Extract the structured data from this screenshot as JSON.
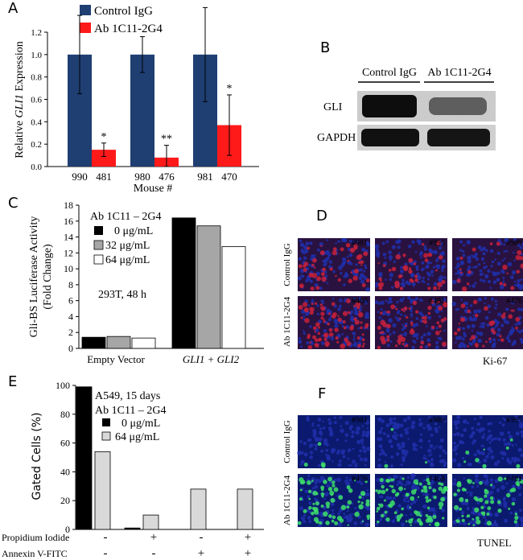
{
  "colors": {
    "control": "#1f3f73",
    "ab": "#ff1a1a",
    "black": "#000000",
    "gray": "#a6a6a6",
    "white": "#ffffff",
    "light_gray": "#d9d9d9",
    "ki67_red": "#c8213a",
    "tunel_green": "#3de06a",
    "nuclei_blue": "#1f2fa8"
  },
  "panel_labels": {
    "a": "A",
    "b": "B",
    "c": "C",
    "d": "D",
    "e": "E",
    "f": "F"
  },
  "chart_data": [
    {
      "id": "A",
      "type": "bar",
      "title": "",
      "ylabel_prefix": "Relative ",
      "ylabel_italic": "GLI1",
      "ylabel_suffix": " Expression",
      "xlabel": "Mouse #",
      "ylim": [
        0,
        1.2
      ],
      "yticks": [
        "0.0",
        "0.2",
        "0.4",
        "0.6",
        "0.8",
        "1.0",
        "1.2"
      ],
      "ytick_values": [
        0,
        0.2,
        0.4,
        0.6,
        0.8,
        1.0,
        1.2
      ],
      "legend": [
        "Control IgG",
        "Ab 1C11-2G4"
      ],
      "groups": [
        {
          "labels": [
            "990",
            "481"
          ],
          "values": [
            1.0,
            0.15
          ],
          "errors": [
            0.35,
            0.06
          ],
          "sig": "*"
        },
        {
          "labels": [
            "980",
            "476"
          ],
          "values": [
            1.0,
            0.08
          ],
          "errors": [
            0.16,
            0.11
          ],
          "sig": "**"
        },
        {
          "labels": [
            "981",
            "470"
          ],
          "values": [
            1.0,
            0.37
          ],
          "errors": [
            0.42,
            0.27
          ],
          "sig": "*"
        }
      ]
    },
    {
      "id": "C",
      "type": "bar",
      "title": "",
      "ylabel_line1": "Gli-BS Luciferase Activity",
      "ylabel_line2": "(Fold Change)",
      "ylim": [
        0,
        18
      ],
      "yticks": [
        "0",
        "2",
        "4",
        "6",
        "8",
        "10",
        "12",
        "14",
        "16",
        "18"
      ],
      "ytick_values": [
        0,
        2,
        4,
        6,
        8,
        10,
        12,
        14,
        16,
        18
      ],
      "categories": [
        "Empty Vector",
        "GLI1 + GLI2"
      ],
      "category_italic": [
        false,
        true
      ],
      "legend_title": "Ab 1C11 – 2G4",
      "annotation": "293T, 48 h",
      "series": [
        {
          "name": "0 μg/mL",
          "values": [
            1.4,
            16.4
          ]
        },
        {
          "name": "32 μg/mL",
          "values": [
            1.5,
            15.4
          ]
        },
        {
          "name": "64 μg/mL",
          "values": [
            1.3,
            12.8
          ]
        }
      ]
    },
    {
      "id": "E",
      "type": "bar",
      "title": "",
      "ylabel": "Gated Cells (%)",
      "ylim": [
        0,
        100
      ],
      "yticks": [
        "0",
        "20",
        "40",
        "60",
        "80",
        "100"
      ],
      "ytick_values": [
        0,
        20,
        40,
        60,
        80,
        100
      ],
      "annotation_line1": "A549, 15 days",
      "annotation_line2": "Ab 1C11 – 2G4",
      "series": [
        {
          "name": "0 μg/mL",
          "values": [
            99,
            1,
            0,
            0
          ]
        },
        {
          "name": "64 μg/mL",
          "values": [
            54,
            10,
            28,
            28
          ]
        }
      ],
      "row_labels": [
        "Propidium Iodide",
        "Annexin V-FITC"
      ],
      "row_marks": [
        [
          "-",
          "+",
          "-",
          "+"
        ],
        [
          "-",
          "-",
          "+",
          "+"
        ]
      ]
    }
  ],
  "western_blot": {
    "lanes": [
      "Control IgG",
      "Ab 1C11-2G4"
    ],
    "rows": [
      "GLI",
      "GAPDH"
    ]
  },
  "ki67_panel": {
    "row_labels": [
      "Control IgG",
      "Ab 1C11-2G4"
    ],
    "ids": [
      [
        "#981",
        "#995",
        "#989"
      ],
      [
        "#468",
        "#481",
        "#476"
      ]
    ],
    "caption": "Ki-67"
  },
  "tunel_panel": {
    "row_labels": [
      "Control IgG",
      "Ab 1C11-2G4"
    ],
    "ids": [
      [
        "#981",
        "#989",
        "#995"
      ],
      [
        "#476",
        "#468",
        "#481"
      ]
    ],
    "caption": "TUNEL"
  }
}
